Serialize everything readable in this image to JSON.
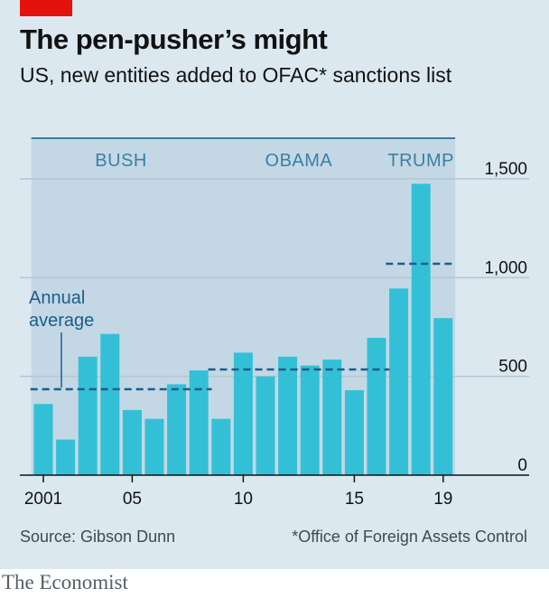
{
  "header": {
    "title": "The pen-pusher’s might",
    "subtitle": "US, new entities added to OFAC* sanctions list"
  },
  "footer": {
    "source": "Source: Gibson Dunn",
    "footnote": "*Office of Foreign Assets Control",
    "brand": "The Economist"
  },
  "colors": {
    "bar": "#33c0d6",
    "era_band": "#c3d8e4",
    "average_line": "#1d5d8a",
    "brand_red": "#e3120b"
  },
  "chart_data": {
    "type": "bar",
    "title": "The pen-pusher’s might",
    "subtitle": "US, new entities added to OFAC* sanctions list",
    "x": [
      2001,
      2002,
      2003,
      2004,
      2005,
      2006,
      2007,
      2008,
      2009,
      2010,
      2011,
      2012,
      2013,
      2014,
      2015,
      2016,
      2017,
      2018,
      2019
    ],
    "values": [
      360,
      180,
      600,
      715,
      330,
      285,
      460,
      530,
      285,
      620,
      500,
      600,
      555,
      585,
      430,
      695,
      945,
      1475,
      795
    ],
    "x_tick_labels": [
      {
        "x": 2001,
        "label": "2001"
      },
      {
        "x": 2005,
        "label": "05"
      },
      {
        "x": 2010,
        "label": "10"
      },
      {
        "x": 2015,
        "label": "15"
      },
      {
        "x": 2019,
        "label": "19"
      }
    ],
    "y_ticks": [
      {
        "value": 0,
        "label": "0"
      },
      {
        "value": 500,
        "label": "500"
      },
      {
        "value": 1000,
        "label": "1,000"
      },
      {
        "value": 1500,
        "label": "1,500"
      }
    ],
    "ylim": [
      0,
      1500
    ],
    "y_axis_side": "right",
    "grid": true,
    "eras": [
      {
        "name": "BUSH",
        "start": 2001,
        "end": 2008,
        "average": 435
      },
      {
        "name": "OBAMA",
        "start": 2009,
        "end": 2016,
        "average": 535
      },
      {
        "name": "TRUMP",
        "start": 2017,
        "end": 2019,
        "average": 1070
      }
    ],
    "annotation": "Annual average"
  }
}
